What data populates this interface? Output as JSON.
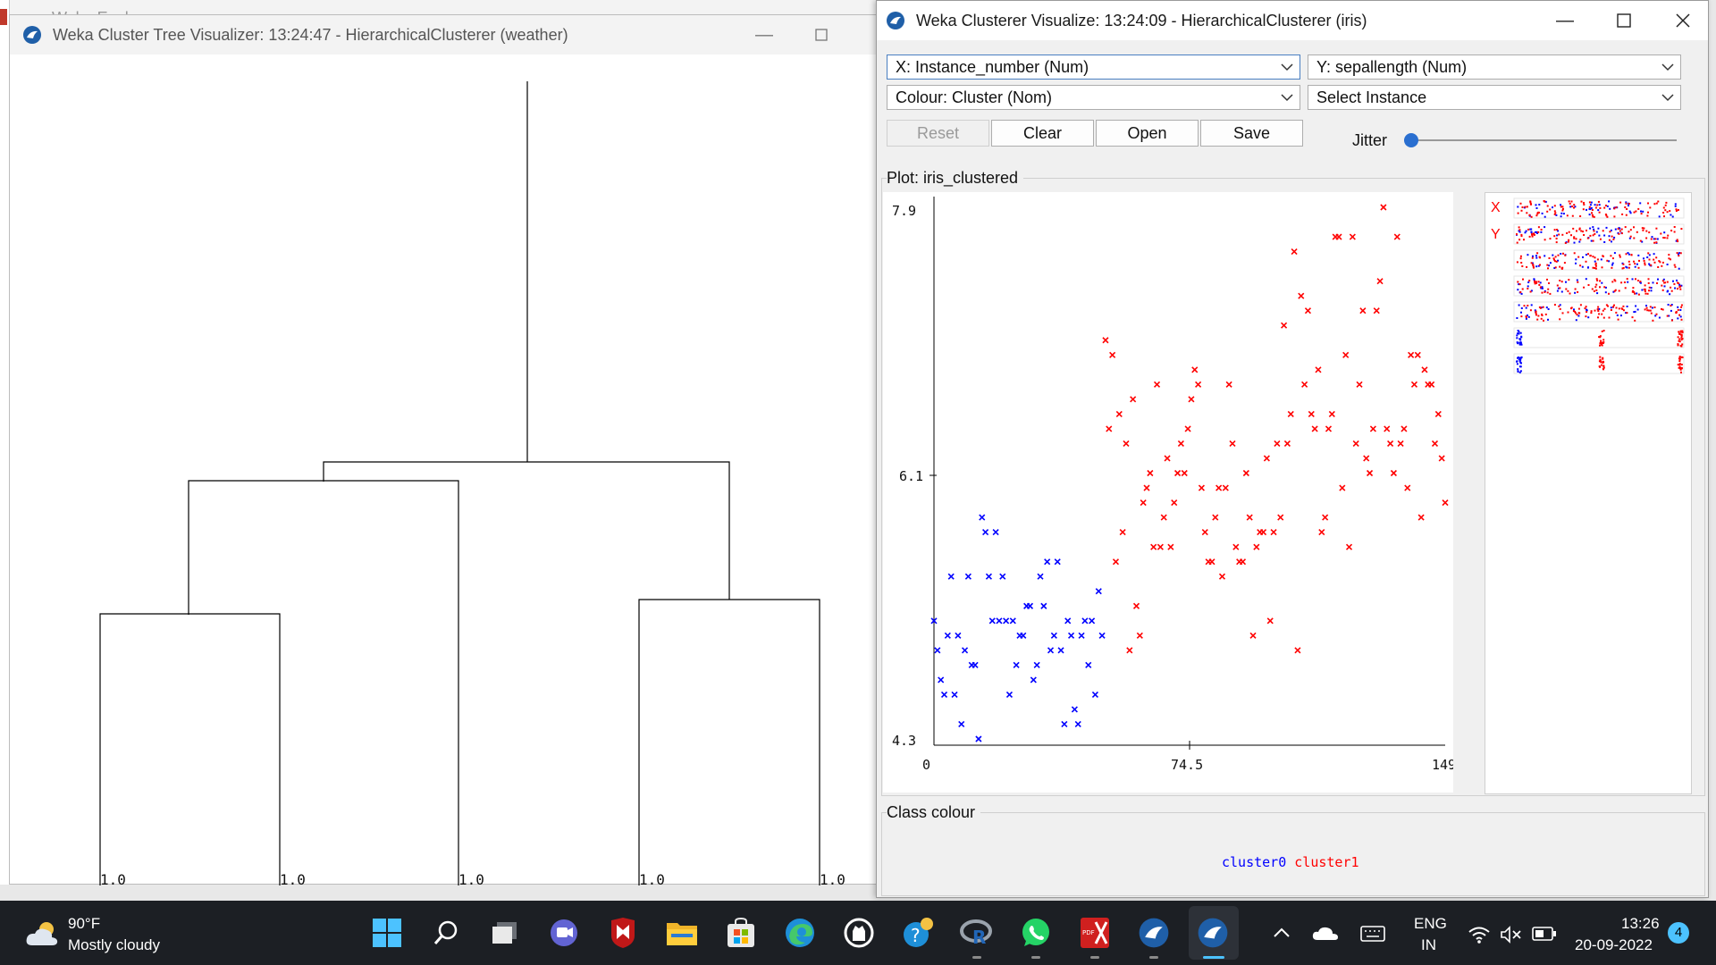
{
  "desktop": {
    "back_window_title": "Weka Explorer"
  },
  "tree_window": {
    "title": "Weka Cluster Tree Visualizer: 13:24:47 - HierarchicalClusterer (weather)",
    "leaves": [
      "1.0",
      "1.0",
      "1.0",
      "1.0",
      "1.0"
    ]
  },
  "visualize_window": {
    "title": "Weka Clusterer Visualize: 13:24:09 - HierarchicalClusterer (iris)",
    "x_axis_select": "X: Instance_number (Num)",
    "y_axis_select": "Y: sepallength (Num)",
    "colour_select": "Colour: Cluster (Nom)",
    "instance_select": "Select Instance",
    "buttons": {
      "reset": "Reset",
      "clear": "Clear",
      "open": "Open",
      "save": "Save"
    },
    "jitter_label": "Jitter",
    "jitter_value": 0,
    "plot_label": "Plot: iris_clustered",
    "mini_x": "X",
    "mini_y": "Y",
    "class_colour_label": "Class colour",
    "colors": {
      "cluster0": "#0000ff",
      "cluster1": "#ff0000"
    }
  },
  "chart_data": {
    "type": "scatter",
    "title": "",
    "xlabel": "",
    "ylabel": "",
    "xlim": [
      0,
      149
    ],
    "ylim": [
      4.3,
      7.9
    ],
    "x_ticks": [
      "0",
      "74.5",
      "149"
    ],
    "y_ticks": [
      "7.9",
      "6.1",
      "4.3"
    ],
    "legend": [
      "cluster0",
      "cluster1"
    ],
    "series": [
      {
        "name": "cluster0",
        "color": "#0000ff",
        "points": [
          [
            0,
            5.1
          ],
          [
            1,
            4.9
          ],
          [
            2,
            4.7
          ],
          [
            3,
            4.6
          ],
          [
            4,
            5.0
          ],
          [
            5,
            5.4
          ],
          [
            6,
            4.6
          ],
          [
            7,
            5.0
          ],
          [
            8,
            4.4
          ],
          [
            9,
            4.9
          ],
          [
            10,
            5.4
          ],
          [
            11,
            4.8
          ],
          [
            12,
            4.8
          ],
          [
            13,
            4.3
          ],
          [
            14,
            5.8
          ],
          [
            15,
            5.7
          ],
          [
            16,
            5.4
          ],
          [
            17,
            5.1
          ],
          [
            18,
            5.7
          ],
          [
            19,
            5.1
          ],
          [
            20,
            5.4
          ],
          [
            21,
            5.1
          ],
          [
            22,
            4.6
          ],
          [
            23,
            5.1
          ],
          [
            24,
            4.8
          ],
          [
            25,
            5.0
          ],
          [
            26,
            5.0
          ],
          [
            27,
            5.2
          ],
          [
            28,
            5.2
          ],
          [
            29,
            4.7
          ],
          [
            30,
            4.8
          ],
          [
            31,
            5.4
          ],
          [
            32,
            5.2
          ],
          [
            33,
            5.5
          ],
          [
            34,
            4.9
          ],
          [
            35,
            5.0
          ],
          [
            36,
            5.5
          ],
          [
            37,
            4.9
          ],
          [
            38,
            4.4
          ],
          [
            39,
            5.1
          ],
          [
            40,
            5.0
          ],
          [
            41,
            4.5
          ],
          [
            42,
            4.4
          ],
          [
            43,
            5.0
          ],
          [
            44,
            5.1
          ],
          [
            45,
            4.8
          ],
          [
            46,
            5.1
          ],
          [
            47,
            4.6
          ],
          [
            48,
            5.3
          ],
          [
            49,
            5.0
          ]
        ]
      },
      {
        "name": "cluster1",
        "color": "#ff0000",
        "points": [
          [
            50,
            7.0
          ],
          [
            51,
            6.4
          ],
          [
            52,
            6.9
          ],
          [
            53,
            5.5
          ],
          [
            54,
            6.5
          ],
          [
            55,
            5.7
          ],
          [
            56,
            6.3
          ],
          [
            57,
            4.9
          ],
          [
            58,
            6.6
          ],
          [
            59,
            5.2
          ],
          [
            60,
            5.0
          ],
          [
            61,
            5.9
          ],
          [
            62,
            6.0
          ],
          [
            63,
            6.1
          ],
          [
            64,
            5.6
          ],
          [
            65,
            6.7
          ],
          [
            66,
            5.6
          ],
          [
            67,
            5.8
          ],
          [
            68,
            6.2
          ],
          [
            69,
            5.6
          ],
          [
            70,
            5.9
          ],
          [
            71,
            6.1
          ],
          [
            72,
            6.3
          ],
          [
            73,
            6.1
          ],
          [
            74,
            6.4
          ],
          [
            75,
            6.6
          ],
          [
            76,
            6.8
          ],
          [
            77,
            6.7
          ],
          [
            78,
            6.0
          ],
          [
            79,
            5.7
          ],
          [
            80,
            5.5
          ],
          [
            81,
            5.5
          ],
          [
            82,
            5.8
          ],
          [
            83,
            6.0
          ],
          [
            84,
            5.4
          ],
          [
            85,
            6.0
          ],
          [
            86,
            6.7
          ],
          [
            87,
            6.3
          ],
          [
            88,
            5.6
          ],
          [
            89,
            5.5
          ],
          [
            90,
            5.5
          ],
          [
            91,
            6.1
          ],
          [
            92,
            5.8
          ],
          [
            93,
            5.0
          ],
          [
            94,
            5.6
          ],
          [
            95,
            5.7
          ],
          [
            96,
            5.7
          ],
          [
            97,
            6.2
          ],
          [
            98,
            5.1
          ],
          [
            99,
            5.7
          ],
          [
            100,
            6.3
          ],
          [
            101,
            5.8
          ],
          [
            102,
            7.1
          ],
          [
            103,
            6.3
          ],
          [
            104,
            6.5
          ],
          [
            105,
            7.6
          ],
          [
            106,
            4.9
          ],
          [
            107,
            7.3
          ],
          [
            108,
            6.7
          ],
          [
            109,
            7.2
          ],
          [
            110,
            6.5
          ],
          [
            111,
            6.4
          ],
          [
            112,
            6.8
          ],
          [
            113,
            5.7
          ],
          [
            114,
            5.8
          ],
          [
            115,
            6.4
          ],
          [
            116,
            6.5
          ],
          [
            117,
            7.7
          ],
          [
            118,
            7.7
          ],
          [
            119,
            6.0
          ],
          [
            120,
            6.9
          ],
          [
            121,
            5.6
          ],
          [
            122,
            7.7
          ],
          [
            123,
            6.3
          ],
          [
            124,
            6.7
          ],
          [
            125,
            7.2
          ],
          [
            126,
            6.2
          ],
          [
            127,
            6.1
          ],
          [
            128,
            6.4
          ],
          [
            129,
            7.2
          ],
          [
            130,
            7.4
          ],
          [
            131,
            7.9
          ],
          [
            132,
            6.4
          ],
          [
            133,
            6.3
          ],
          [
            134,
            6.1
          ],
          [
            135,
            7.7
          ],
          [
            136,
            6.3
          ],
          [
            137,
            6.4
          ],
          [
            138,
            6.0
          ],
          [
            139,
            6.9
          ],
          [
            140,
            6.7
          ],
          [
            141,
            6.9
          ],
          [
            142,
            5.8
          ],
          [
            143,
            6.8
          ],
          [
            144,
            6.7
          ],
          [
            145,
            6.7
          ],
          [
            146,
            6.3
          ],
          [
            147,
            6.5
          ],
          [
            148,
            6.2
          ],
          [
            149,
            5.9
          ]
        ]
      }
    ]
  },
  "taskbar": {
    "weather_temp": "90°F",
    "weather_desc": "Mostly cloudy",
    "lang_top": "ENG",
    "lang_bottom": "IN",
    "time": "13:26",
    "date": "20-09-2022",
    "notification_count": "4",
    "pdf_badge": "PDF"
  }
}
